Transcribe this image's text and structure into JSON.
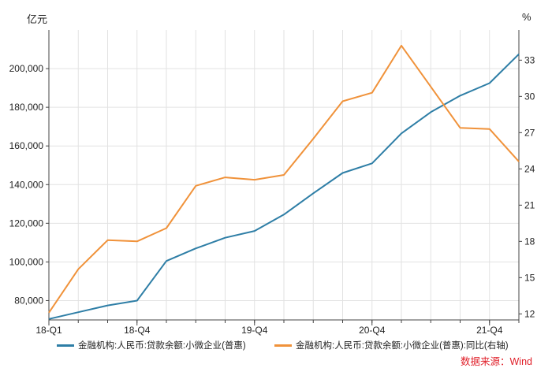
{
  "chart_data": {
    "type": "line",
    "left_axis_unit": "亿元",
    "right_axis_unit": "%",
    "categories": [
      "18-Q1",
      "18-Q2",
      "18-Q3",
      "18-Q4",
      "19-Q1",
      "19-Q2",
      "19-Q3",
      "19-Q4",
      "20-Q1",
      "20-Q2",
      "20-Q3",
      "20-Q4",
      "21-Q1",
      "21-Q2",
      "21-Q3",
      "21-Q4",
      "22-Q1"
    ],
    "x_tick_labels": [
      "18-Q1",
      "18-Q4",
      "19-Q4",
      "20-Q4",
      "21-Q4"
    ],
    "y_left": {
      "ticks": [
        "80,000",
        "100,000",
        "120,000",
        "140,000",
        "160,000",
        "180,000",
        "200,000"
      ],
      "range": [
        70000,
        220000
      ]
    },
    "y_right": {
      "ticks": [
        "12",
        "15",
        "18",
        "21",
        "24",
        "27",
        "30",
        "33"
      ],
      "range": [
        11.5,
        35.5
      ]
    },
    "grid": true,
    "legend_position": "bottom",
    "series": [
      {
        "name": "金融机构:人民币:贷款余额:小微企业(普惠)",
        "axis": "left",
        "color": "#2e7ea6",
        "values": [
          70500,
          74000,
          77500,
          80000,
          100500,
          107000,
          112500,
          116000,
          124500,
          135500,
          146000,
          151000,
          166500,
          177500,
          186000,
          192500,
          207500
        ]
      },
      {
        "name": "金融机构:人民币:贷款余额:小微企业(普惠):同比(右轴)",
        "axis": "right",
        "color": "#f0923a",
        "values": [
          12.1,
          15.7,
          18.1,
          18.0,
          19.1,
          22.6,
          23.3,
          23.1,
          23.5,
          26.5,
          29.6,
          30.3,
          34.2,
          30.8,
          27.4,
          27.3,
          24.6
        ]
      }
    ]
  },
  "source": "数据来源：Wind"
}
